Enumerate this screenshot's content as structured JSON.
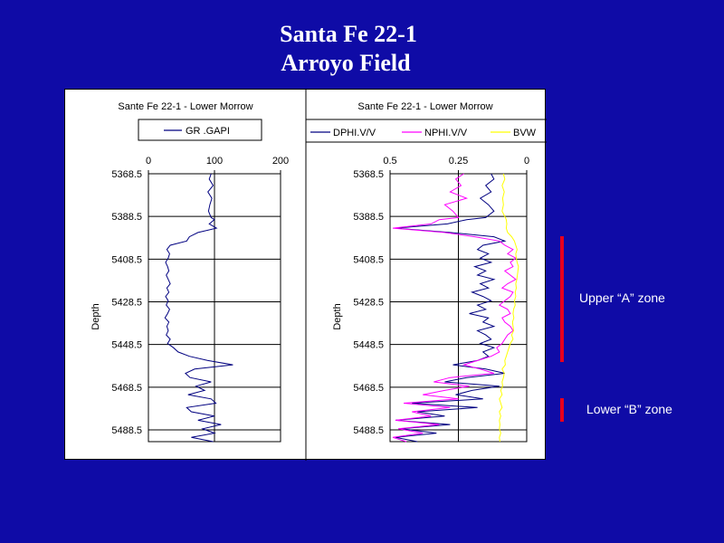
{
  "slide": {
    "title_line1": "Santa Fe 22-1",
    "title_line2": "Arroyo Field"
  },
  "colors": {
    "background": "#0f0ba6",
    "gr": "#000080",
    "dphi": "#000080",
    "nphi": "#ff00ff",
    "bvw": "#ffff00",
    "zone_marker": "#e8001c"
  },
  "zones": {
    "upper": {
      "label": "Upper “A” zone",
      "top_depth": 5398,
      "bottom_depth": 5457
    },
    "lower": {
      "label": "Lower “B” zone",
      "top_depth": 5474,
      "bottom_depth": 5485
    }
  },
  "chart_data": [
    {
      "type": "line",
      "title": "Sante Fe 22-1 - Lower Morrow",
      "ylabel": "Depth",
      "ylim": [
        5368.5,
        5494
      ],
      "y_reversed": true,
      "yticks": [
        "5368.5",
        "5388.5",
        "5408.5",
        "5428.5",
        "5448.5",
        "5468.5",
        "5488.5"
      ],
      "xlim": [
        0,
        200
      ],
      "xticks": [
        "0",
        "100",
        "200"
      ],
      "legend_position": "top",
      "grid": true,
      "depth": [
        5368.5,
        5371,
        5374,
        5377,
        5380,
        5383,
        5386,
        5389,
        5390,
        5392,
        5394,
        5396,
        5398,
        5400,
        5402,
        5404,
        5406,
        5408,
        5410,
        5412,
        5414,
        5416,
        5418,
        5420,
        5422,
        5424,
        5426,
        5428,
        5430,
        5432,
        5434,
        5436,
        5438,
        5440,
        5442,
        5444,
        5446,
        5448,
        5450,
        5452,
        5454,
        5456,
        5458,
        5460,
        5462,
        5464,
        5466,
        5468,
        5470,
        5472,
        5474,
        5476,
        5478,
        5480,
        5482,
        5484,
        5486,
        5488,
        5490,
        5492,
        5494
      ],
      "series": [
        {
          "name": "GR  .GAPI",
          "values": [
            95,
            92,
            98,
            90,
            96,
            93,
            91,
            95,
            100,
            92,
            103,
            75,
            62,
            58,
            33,
            28,
            32,
            30,
            26,
            29,
            31,
            27,
            30,
            33,
            28,
            31,
            26,
            30,
            27,
            32,
            29,
            25,
            31,
            28,
            30,
            27,
            33,
            29,
            38,
            45,
            62,
            90,
            128,
            70,
            56,
            63,
            95,
            72,
            85,
            60,
            95,
            102,
            58,
            65,
            100,
            75,
            110,
            82,
            100,
            65,
            98
          ]
        }
      ]
    },
    {
      "type": "line",
      "title": "Sante Fe 22-1 - Lower Morrow",
      "ylabel": "Depth",
      "ylim": [
        5368.5,
        5494
      ],
      "y_reversed": true,
      "yticks": [
        "5368.5",
        "5388.5",
        "5408.5",
        "5428.5",
        "5448.5",
        "5468.5",
        "5488.5"
      ],
      "xlim": [
        0.5,
        0
      ],
      "xticks": [
        "0.5",
        "0.25",
        "0"
      ],
      "legend_position": "top",
      "grid": true,
      "depth": [
        5368.5,
        5371,
        5374,
        5377,
        5380,
        5383,
        5386,
        5389,
        5390,
        5392,
        5394,
        5396,
        5398,
        5400,
        5402,
        5404,
        5406,
        5408,
        5410,
        5412,
        5414,
        5416,
        5418,
        5420,
        5422,
        5424,
        5426,
        5428,
        5430,
        5432,
        5434,
        5436,
        5438,
        5440,
        5442,
        5444,
        5446,
        5448,
        5450,
        5452,
        5454,
        5456,
        5458,
        5460,
        5462,
        5464,
        5466,
        5468,
        5470,
        5472,
        5474,
        5476,
        5478,
        5480,
        5482,
        5484,
        5486,
        5488,
        5490,
        5492,
        5494
      ],
      "series": [
        {
          "name": "DPHI.V/V",
          "values": [
            0.13,
            0.12,
            0.15,
            0.13,
            0.17,
            0.14,
            0.12,
            0.15,
            0.22,
            0.29,
            0.48,
            0.28,
            0.12,
            0.08,
            0.16,
            0.18,
            0.14,
            0.17,
            0.13,
            0.19,
            0.15,
            0.18,
            0.12,
            0.17,
            0.14,
            0.2,
            0.16,
            0.13,
            0.18,
            0.15,
            0.21,
            0.14,
            0.16,
            0.12,
            0.18,
            0.15,
            0.13,
            0.17,
            0.12,
            0.16,
            0.14,
            0.18,
            0.27,
            0.15,
            0.08,
            0.22,
            0.3,
            0.1,
            0.2,
            0.26,
            0.16,
            0.42,
            0.18,
            0.4,
            0.3,
            0.48,
            0.28,
            0.46,
            0.33,
            0.48,
            0.4
          ]
        },
        {
          "name": "NPHI.V/V",
          "values": [
            0.23,
            0.26,
            0.24,
            0.28,
            0.22,
            0.3,
            0.27,
            0.25,
            0.32,
            0.35,
            0.49,
            0.3,
            0.19,
            0.1,
            0.08,
            0.05,
            0.07,
            0.04,
            0.06,
            0.05,
            0.08,
            0.06,
            0.04,
            0.07,
            0.09,
            0.05,
            0.06,
            0.08,
            0.1,
            0.07,
            0.06,
            0.09,
            0.08,
            0.06,
            0.05,
            0.07,
            0.08,
            0.09,
            0.11,
            0.1,
            0.13,
            0.18,
            0.23,
            0.17,
            0.12,
            0.28,
            0.34,
            0.21,
            0.3,
            0.38,
            0.25,
            0.45,
            0.28,
            0.42,
            0.35,
            0.48,
            0.32,
            0.47,
            0.38,
            0.49,
            0.44
          ]
        },
        {
          "name": "BVW",
          "values": [
            0.085,
            0.08,
            0.09,
            0.082,
            0.088,
            0.085,
            0.09,
            0.078,
            0.075,
            0.073,
            0.075,
            0.07,
            0.055,
            0.045,
            0.04,
            0.035,
            0.04,
            0.038,
            0.035,
            0.03,
            0.032,
            0.034,
            0.036,
            0.04,
            0.038,
            0.042,
            0.04,
            0.045,
            0.042,
            0.048,
            0.05,
            0.047,
            0.052,
            0.05,
            0.048,
            0.055,
            0.05,
            0.06,
            0.065,
            0.07,
            0.075,
            0.08,
            0.078,
            0.09,
            0.082,
            0.085,
            0.09,
            0.088,
            0.095,
            0.09,
            0.1,
            0.095,
            0.09,
            0.1,
            0.095,
            0.1,
            0.098,
            0.1,
            0.095,
            0.1,
            0.098
          ]
        }
      ]
    }
  ]
}
